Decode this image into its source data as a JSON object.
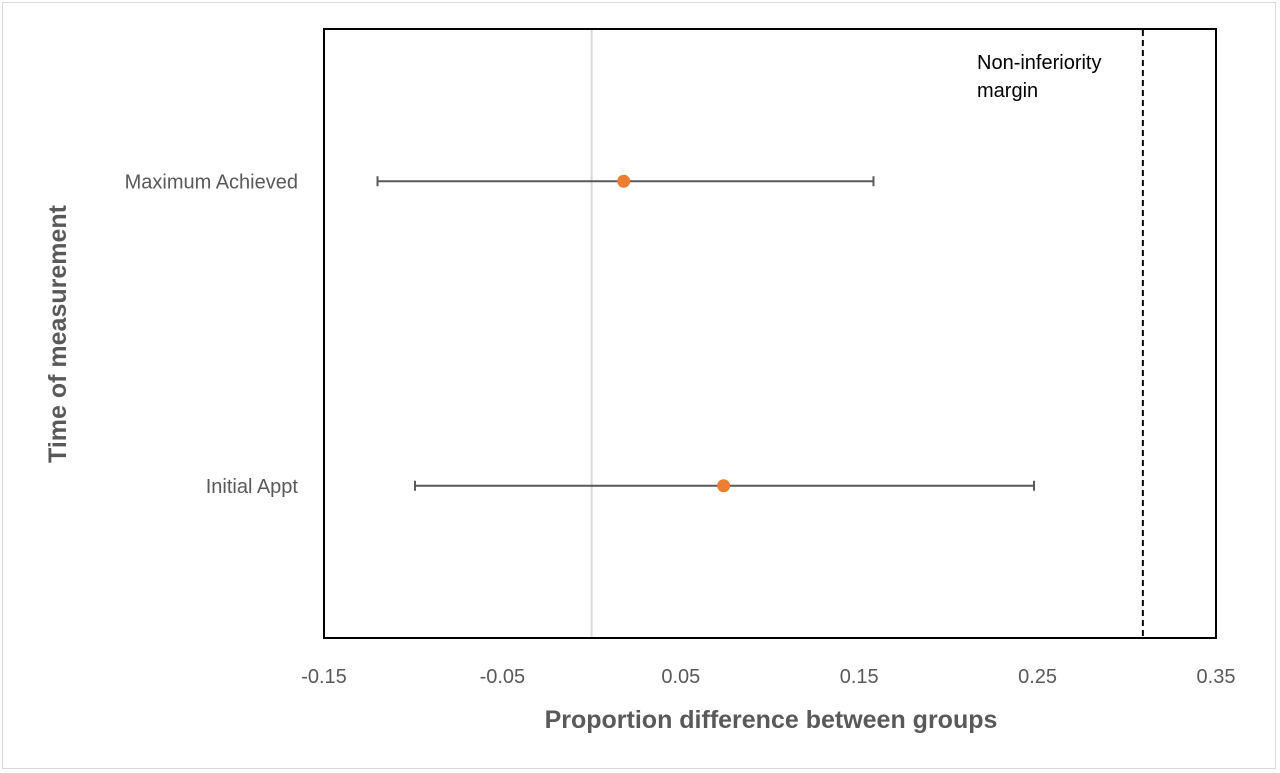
{
  "chart_data": {
    "type": "scatter",
    "title": "",
    "xlabel": "Proportion difference between groups",
    "ylabel": "Time of measurement",
    "xlim": [
      -0.15,
      0.35
    ],
    "x_ticks": [
      -0.15,
      -0.05,
      0.05,
      0.15,
      0.25,
      0.35
    ],
    "x_tick_labels": [
      "-0.15",
      "-0.05",
      "0.05",
      "0.15",
      "0.25",
      "0.35"
    ],
    "categories": [
      "Maximum Achieved",
      "Initial Appt"
    ],
    "points": [
      {
        "category": "Maximum Achieved",
        "estimate": 0.018,
        "lower": -0.12,
        "upper": 0.158
      },
      {
        "category": "Initial Appt",
        "estimate": 0.074,
        "lower": -0.099,
        "upper": 0.248
      }
    ],
    "reference_line": {
      "x": 0,
      "style": "solid",
      "color": "#d9d9d9"
    },
    "margin_line": {
      "x": 0.309,
      "style": "dashed",
      "color": "#000000"
    },
    "annotation": {
      "lines": [
        "Non-inferiority",
        "margin"
      ]
    },
    "point_color": "#ed7d31",
    "errorbar_color": "#595959",
    "grid": false,
    "legend": "none"
  }
}
